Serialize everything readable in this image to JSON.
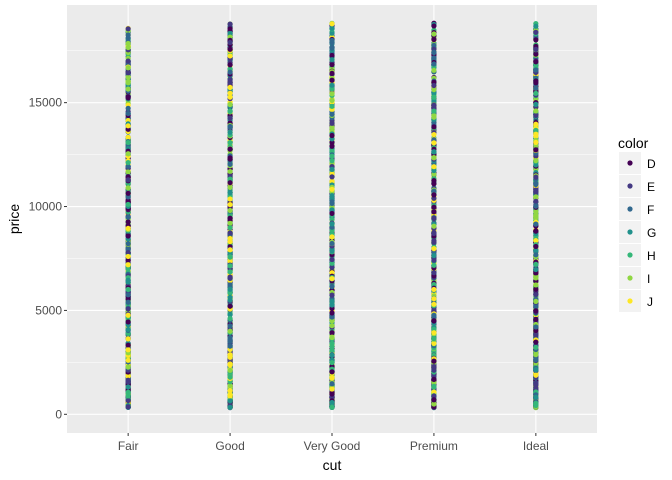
{
  "chart_data": {
    "type": "scatter",
    "xlabel": "cut",
    "ylabel": "price",
    "categories": [
      "Fair",
      "Good",
      "Very Good",
      "Premium",
      "Ideal"
    ],
    "ylim": [
      -900,
      19700
    ],
    "yticks": [
      0,
      5000,
      10000,
      15000
    ],
    "ytick_labels": [
      "0",
      "5000",
      "10000",
      "15000"
    ],
    "grid": true,
    "legend": {
      "title": "color",
      "placement": "right",
      "entries": [
        "D",
        "E",
        "F",
        "G",
        "H",
        "I",
        "J"
      ]
    },
    "series_colors": {
      "D": "#440154",
      "E": "#443983",
      "F": "#31688e",
      "G": "#21918c",
      "H": "#35b779",
      "I": "#90d743",
      "J": "#fde725"
    },
    "price_range_by_cut": {
      "Fair": [
        337,
        18574
      ],
      "Good": [
        327,
        18788
      ],
      "Very Good": [
        336,
        18818
      ],
      "Premium": [
        326,
        18823
      ],
      "Ideal": [
        326,
        18806
      ]
    }
  }
}
